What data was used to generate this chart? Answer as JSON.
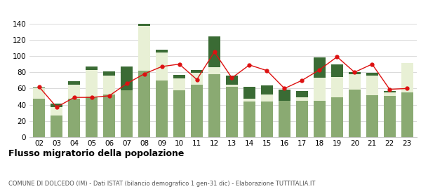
{
  "years": [
    "02",
    "03",
    "04",
    "05",
    "06",
    "07",
    "08",
    "09",
    "10",
    "11",
    "12",
    "13",
    "14",
    "15",
    "16",
    "17",
    "18",
    "19",
    "20",
    "21",
    "22",
    "23"
  ],
  "iscritti_altri_comuni": [
    47,
    27,
    47,
    50,
    53,
    58,
    82,
    70,
    58,
    65,
    78,
    62,
    44,
    44,
    45,
    45,
    45,
    49,
    59,
    52,
    51,
    55
  ],
  "iscritti_estero": [
    13,
    10,
    18,
    33,
    23,
    0,
    55,
    34,
    14,
    14,
    8,
    3,
    3,
    9,
    0,
    4,
    28,
    25,
    19,
    24,
    4,
    36
  ],
  "iscritti_altri": [
    1,
    4,
    4,
    4,
    5,
    29,
    4,
    4,
    5,
    4,
    38,
    11,
    15,
    11,
    14,
    8,
    25,
    16,
    2,
    3,
    2,
    0
  ],
  "cancellati": [
    62,
    37,
    49,
    49,
    51,
    66,
    78,
    87,
    90,
    71,
    105,
    73,
    89,
    82,
    60,
    70,
    83,
    99,
    80,
    90,
    59,
    60
  ],
  "color_iscritti_comuni": "#8aaa72",
  "color_iscritti_estero": "#e8f0d5",
  "color_iscritti_altri": "#3a6b34",
  "color_cancellati": "#dd1111",
  "title": "Flusso migratorio della popolazione",
  "subtitle": "COMUNE DI DOLCEDO (IM) - Dati ISTAT (bilancio demografico 1 gen-31 dic) - Elaborazione TUTTITALIA.IT",
  "ylim_min": 0,
  "ylim_max": 140,
  "yticks": [
    0,
    20,
    40,
    60,
    80,
    100,
    120,
    140
  ],
  "bg_color": "#ffffff",
  "grid_color": "#cccccc"
}
